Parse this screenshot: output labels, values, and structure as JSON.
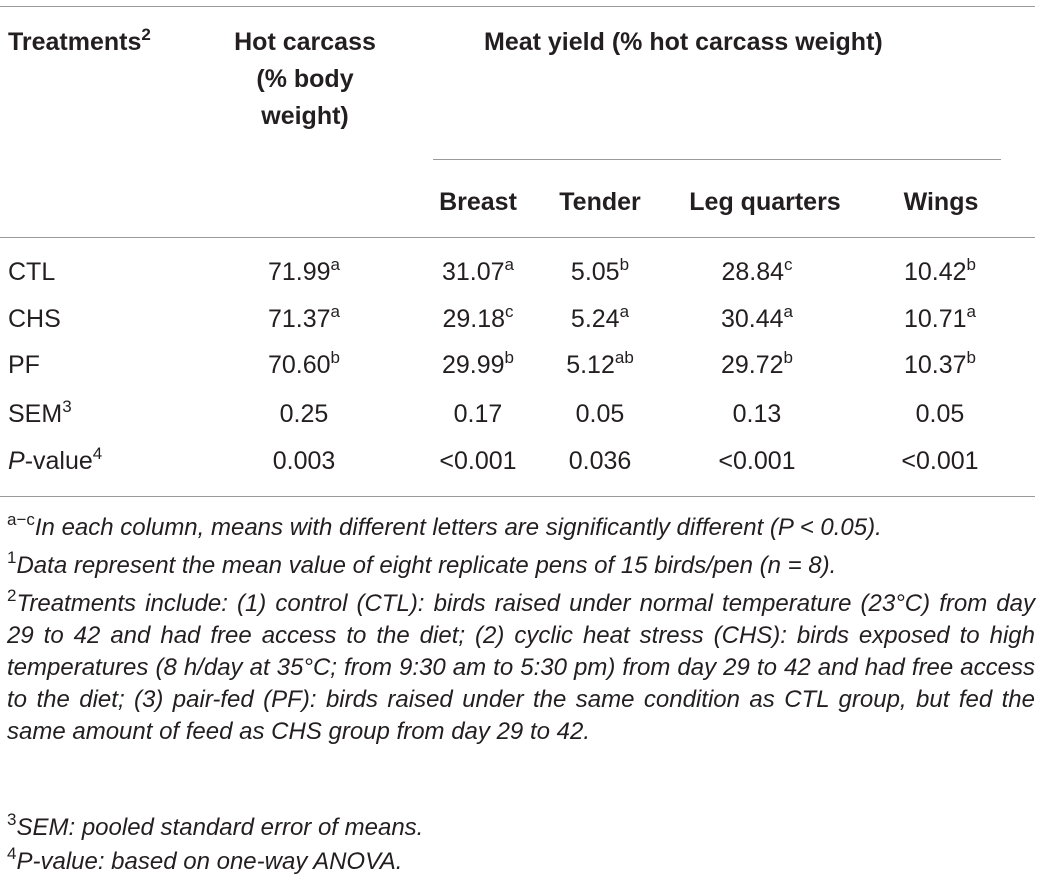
{
  "header": {
    "treatments": "Treatments",
    "treatments_sup": "2",
    "hot_carcass": [
      "Hot carcass",
      "(% body",
      "weight)"
    ],
    "meat_yield": "Meat yield (% hot carcass weight)",
    "breast": "Breast",
    "tender": "Tender",
    "leg_quarters": "Leg quarters",
    "wings": "Wings"
  },
  "rows": [
    {
      "label": "CTL",
      "label_sup": "",
      "label_italic": "",
      "cells": [
        {
          "v": "71.99",
          "s": "a"
        },
        {
          "v": "31.07",
          "s": "a"
        },
        {
          "v": "5.05",
          "s": "b"
        },
        {
          "v": "28.84",
          "s": "c"
        },
        {
          "v": "10.42",
          "s": "b"
        }
      ]
    },
    {
      "label": "CHS",
      "label_sup": "",
      "label_italic": "",
      "cells": [
        {
          "v": "71.37",
          "s": "a"
        },
        {
          "v": "29.18",
          "s": "c"
        },
        {
          "v": "5.24",
          "s": "a"
        },
        {
          "v": "30.44",
          "s": "a"
        },
        {
          "v": "10.71",
          "s": "a"
        }
      ]
    },
    {
      "label": "PF",
      "label_sup": "",
      "label_italic": "",
      "cells": [
        {
          "v": "70.60",
          "s": "b"
        },
        {
          "v": "29.99",
          "s": "b"
        },
        {
          "v": "5.12",
          "s": "ab"
        },
        {
          "v": "29.72",
          "s": "b"
        },
        {
          "v": "10.37",
          "s": "b"
        }
      ]
    },
    {
      "label": "SEM",
      "label_sup": "3",
      "label_italic": "",
      "cells": [
        {
          "v": "0.25",
          "s": ""
        },
        {
          "v": "0.17",
          "s": ""
        },
        {
          "v": "0.05",
          "s": ""
        },
        {
          "v": "0.13",
          "s": ""
        },
        {
          "v": "0.05",
          "s": ""
        }
      ]
    },
    {
      "label": "-value",
      "label_sup": "4",
      "label_italic": "P",
      "cells": [
        {
          "v": "0.003",
          "s": ""
        },
        {
          "v": "<0.001",
          "s": ""
        },
        {
          "v": "0.036",
          "s": ""
        },
        {
          "v": "<0.001",
          "s": ""
        },
        {
          "v": "<0.001",
          "s": ""
        }
      ]
    }
  ],
  "footnotes": {
    "f_ac_mark": "a−c",
    "f_ac": "In each column, means with different letters are significantly different (P < 0.05).",
    "f1_mark": "1",
    "f1": "Data represent the mean value of eight replicate pens of 15 birds/pen (n = 8).",
    "f2_mark": "2",
    "f2": "Treatments include: (1) control (CTL): birds raised under normal temperature (23°C) from day 29 to 42 and had free access to the diet; (2) cyclic heat stress (CHS): birds exposed to high temperatures (8 h/day at 35°C; from 9:30 am to 5:30 pm) from day 29 to 42 and had free access to the diet; (3) pair-fed (PF): birds raised under the same condition as CTL group, but fed the same amount of feed as CHS group from day 29 to 42.",
    "f3_mark": "3",
    "f3": "SEM: pooled standard error of means.",
    "f4_mark": "4",
    "f4": "P-value: based on one-way ANOVA."
  }
}
